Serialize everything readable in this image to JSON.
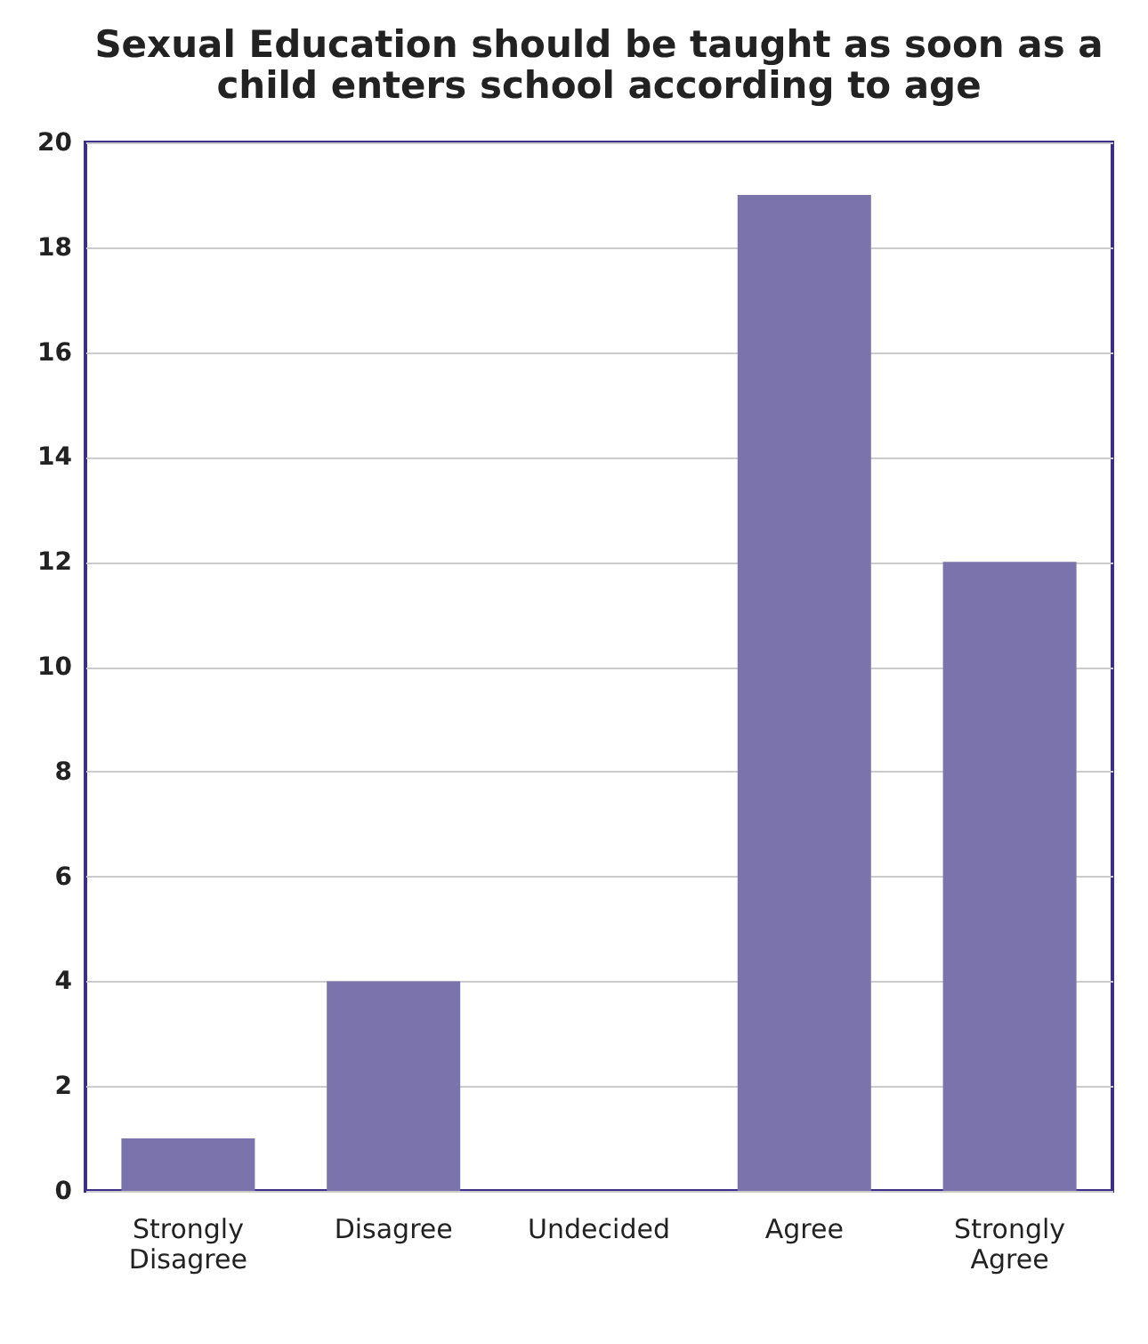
{
  "chart_data": {
    "type": "bar",
    "title": [
      "Sexual Education should be taught as soon as a",
      "child enters school according to age"
    ],
    "categories": [
      "Strongly\nDisagree",
      "Disagree",
      "Undecided",
      "Agree",
      "Strongly\nAgree"
    ],
    "values": [
      1,
      4,
      0,
      19,
      12
    ],
    "color": "#7b73ab",
    "ylim": [
      0,
      20
    ],
    "yticks": [
      0,
      2,
      4,
      6,
      8,
      10,
      12,
      14,
      16,
      18,
      20
    ],
    "grid": "y"
  }
}
